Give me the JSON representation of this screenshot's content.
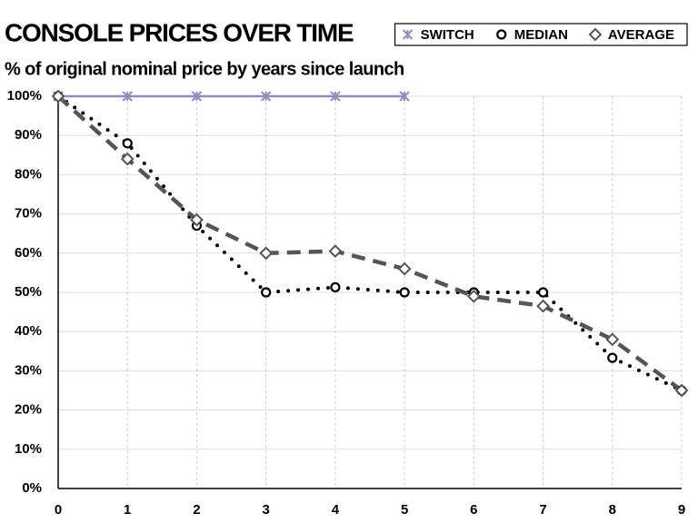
{
  "chart_data": {
    "type": "line",
    "title": "CONSOLE PRICES OVER TIME",
    "subtitle": "% of original nominal price by years since launch",
    "x": [
      0,
      1,
      2,
      3,
      4,
      5,
      6,
      7,
      8,
      9
    ],
    "series": [
      {
        "name": "SWITCH",
        "color": "#9b86c4",
        "line_style": "solid",
        "marker": "x",
        "values": [
          100,
          100,
          100,
          100,
          100,
          100,
          null,
          null,
          null,
          null
        ]
      },
      {
        "name": "MEDIAN",
        "color": "#000000",
        "line_style": "dotted",
        "marker": "circle",
        "values": [
          100,
          88,
          67,
          50,
          51.3,
          50,
          50,
          50,
          33.3,
          25
        ]
      },
      {
        "name": "AVERAGE",
        "color": "#555555",
        "line_style": "dashed",
        "marker": "diamond",
        "values": [
          100,
          84,
          68.5,
          60,
          60.5,
          56,
          49,
          46.5,
          38,
          25
        ]
      }
    ],
    "xlim": [
      0,
      9
    ],
    "xticks": [
      0,
      1,
      2,
      3,
      4,
      5,
      6,
      7,
      8,
      9
    ],
    "ylim": [
      0,
      100
    ],
    "yticks": [
      {
        "value": 0,
        "label": "0%"
      },
      {
        "value": 10,
        "label": "10%"
      },
      {
        "value": 20,
        "label": "20%"
      },
      {
        "value": 30,
        "label": "30%"
      },
      {
        "value": 40,
        "label": "40%"
      },
      {
        "value": 50,
        "label": "50%"
      },
      {
        "value": 60,
        "label": "60%"
      },
      {
        "value": 70,
        "label": "70%"
      },
      {
        "value": 80,
        "label": "80%"
      },
      {
        "value": 90,
        "label": "90%"
      },
      {
        "value": 100,
        "label": "100%"
      }
    ],
    "grid": true,
    "legend": "top-right"
  }
}
